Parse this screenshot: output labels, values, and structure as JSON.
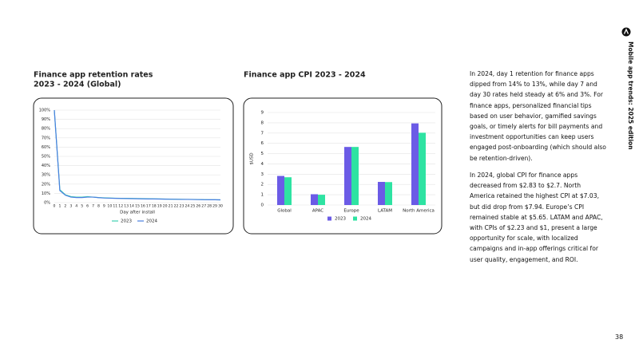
{
  "side_title": "Mobile app trends: 2025 edition",
  "page_number": "38",
  "paragraphs": [
    "In 2024, day 1 retention for finance apps dipped from 14% to 13%, while day 7 and day 30 rates held steady at 6% and 3%. For finance apps, personalized financial tips based on user behavior, gamified savings goals, or timely alerts for bill payments and investment opportunities can keep users engaged post-onboarding (which should also be retention-driven).",
    "In 2024, global CPI for finance apps decreased from $2.83 to $2.7. North America retained the highest CPI at $7.03, but did drop from $7.94. Europe’s CPI remained stable at $5.65. LATAM and APAC, with CPIs of $2.23 and $1, present a large opportunity for scale, with localized campaigns and in-app offerings critical for user quality, engagement, and ROI."
  ],
  "chart_data": [
    {
      "type": "line",
      "title": "Finance app retention rates",
      "subtitle": "2023 - 2024 (Global)",
      "x_label": "Day after install",
      "x": [
        0,
        1,
        2,
        3,
        4,
        5,
        6,
        7,
        8,
        9,
        10,
        11,
        12,
        13,
        14,
        15,
        16,
        17,
        18,
        19,
        20,
        21,
        22,
        23,
        24,
        25,
        26,
        27,
        28,
        29,
        30
      ],
      "series": [
        {
          "name": "2023",
          "color": "#3fd0b0",
          "values": [
            100,
            14,
            8.5,
            6.5,
            6,
            6,
            6.5,
            6,
            5.5,
            5.2,
            5,
            4.8,
            4.7,
            4.6,
            4.5,
            4.4,
            4.3,
            4.2,
            4.1,
            4,
            3.9,
            3.8,
            3.7,
            3.6,
            3.5,
            3.5,
            3.4,
            3.3,
            3.2,
            3.1,
            3
          ]
        },
        {
          "name": "2024",
          "color": "#4a7fe0",
          "values": [
            100,
            13,
            8,
            6,
            5.5,
            5.5,
            6,
            6,
            5.4,
            5,
            4.8,
            4.6,
            4.5,
            4.4,
            4.3,
            4.2,
            4.1,
            4,
            4,
            3.9,
            3.8,
            3.7,
            3.6,
            3.5,
            3.5,
            3.4,
            3.3,
            3.2,
            3.1,
            3.1,
            3
          ]
        }
      ],
      "xlim": [
        0,
        30
      ],
      "xticks": [
        0,
        1,
        2,
        3,
        4,
        5,
        6,
        7,
        8,
        9,
        10,
        11,
        12,
        13,
        14,
        15,
        16,
        17,
        18,
        19,
        20,
        21,
        22,
        23,
        24,
        25,
        26,
        27,
        28,
        29,
        30
      ],
      "ylim": [
        0,
        100
      ],
      "yticks": [
        {
          "value": 0,
          "label": "0%"
        },
        {
          "value": 10,
          "label": "10%"
        },
        {
          "value": 20,
          "label": "20%"
        },
        {
          "value": 30,
          "label": "30%"
        },
        {
          "value": 40,
          "label": "40%"
        },
        {
          "value": 50,
          "label": "50%"
        },
        {
          "value": 60,
          "label": "60%"
        },
        {
          "value": 70,
          "label": "70%"
        },
        {
          "value": 80,
          "label": "80%"
        },
        {
          "value": 90,
          "label": "90%"
        },
        {
          "value": 100,
          "label": "100%"
        }
      ],
      "grid": true
    },
    {
      "type": "bar",
      "title": "Finance app CPI 2023 - 2024",
      "y_label": "$USD",
      "categories": [
        "Global",
        "APAC",
        "Europe",
        "LATAM",
        "North America"
      ],
      "series": [
        {
          "name": "2023",
          "color": "#6b5be6",
          "values": [
            2.83,
            1.05,
            5.65,
            2.25,
            7.94
          ]
        },
        {
          "name": "2024",
          "color": "#2ee3a2",
          "values": [
            2.7,
            1,
            5.65,
            2.23,
            7.03
          ]
        }
      ],
      "ylim": [
        0,
        9
      ],
      "yticks": [
        0,
        1,
        2,
        3,
        4,
        5,
        6,
        7,
        8,
        9
      ],
      "grid": true
    }
  ]
}
